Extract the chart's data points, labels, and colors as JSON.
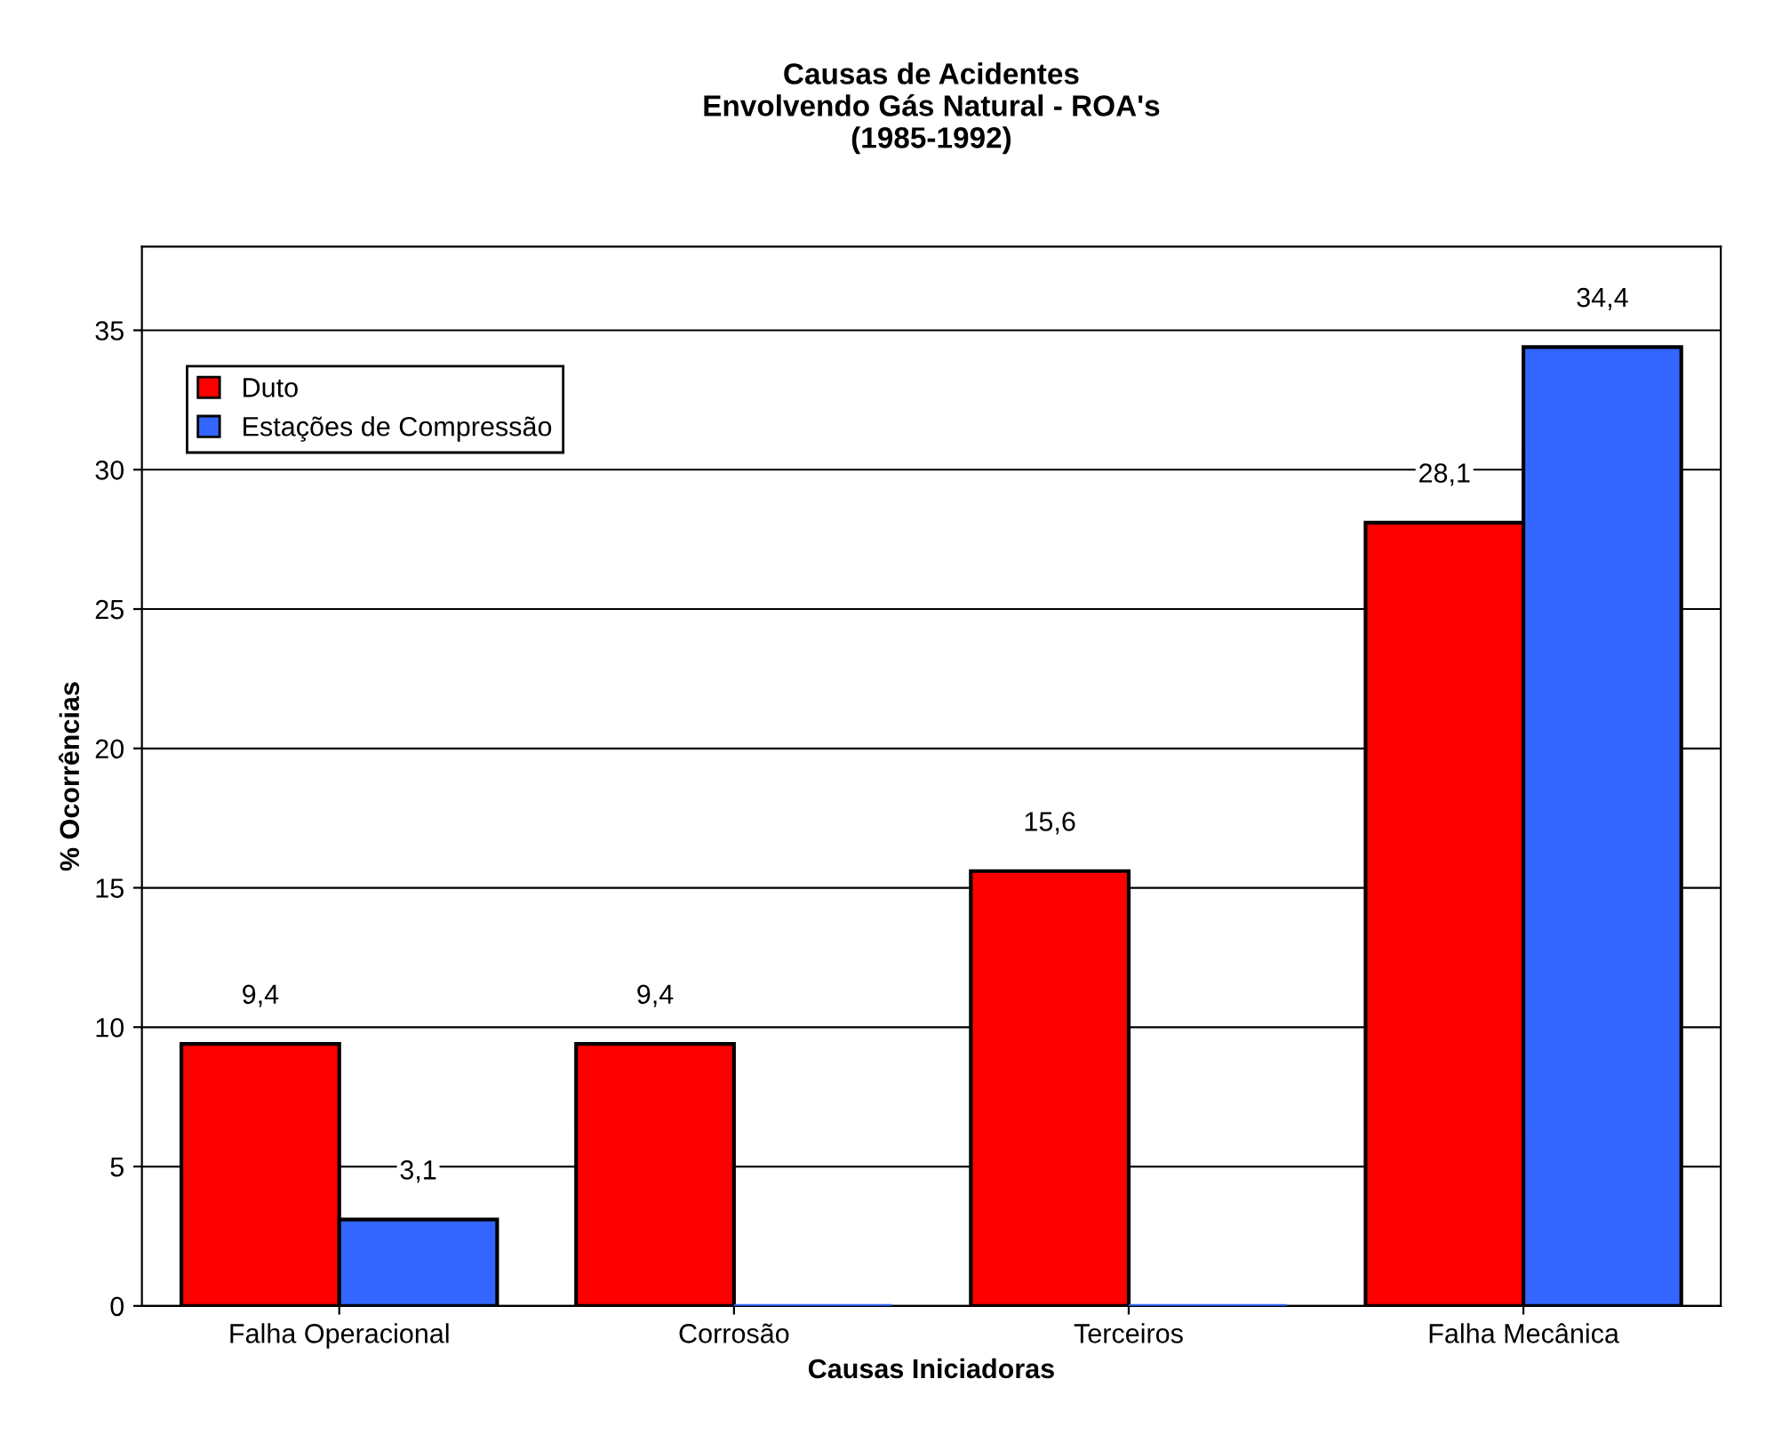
{
  "chart_data": {
    "type": "bar",
    "title": "Causas de Acidentes\nEnvolvendo Gás Natural - ROA's\n(1985-1992)",
    "xlabel": "Causas Iniciadoras",
    "ylabel": "% Ocorrências",
    "categories": [
      "Falha Operacional",
      "Corrosão",
      "Terceiros",
      "Falha Mecânica"
    ],
    "series": [
      {
        "name": "Duto",
        "color": "#ff0000",
        "values": [
          9.4,
          9.4,
          15.6,
          28.1
        ],
        "value_labels": [
          "9,4",
          "9,4",
          "15,6",
          "28,1"
        ]
      },
      {
        "name": "Estações de Compressão",
        "color": "#3366ff",
        "values": [
          3.1,
          0,
          0,
          34.4
        ],
        "value_labels": [
          "3,1",
          null,
          null,
          "34,4"
        ]
      }
    ],
    "ylim": [
      0,
      38
    ],
    "yticks": [
      0,
      5,
      10,
      15,
      20,
      25,
      30,
      35
    ],
    "grid": "y",
    "legend": "top left"
  }
}
